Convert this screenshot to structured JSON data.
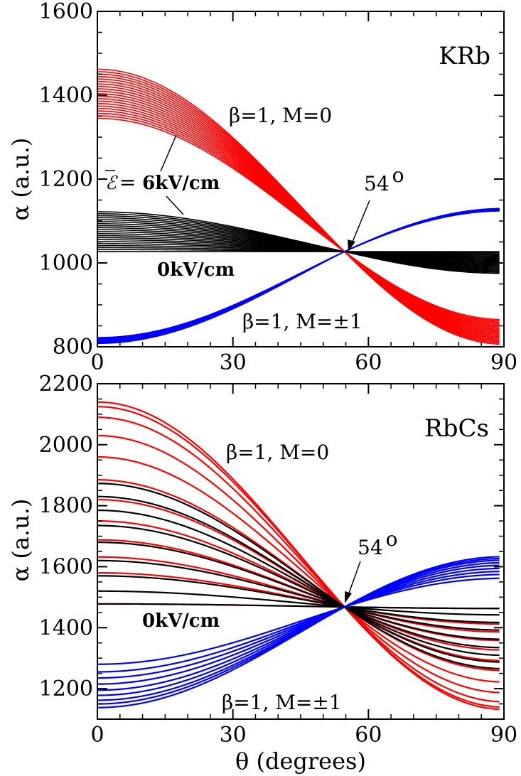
{
  "chart_data": [
    {
      "type": "line",
      "panel_label": "KRb",
      "xlabel": "",
      "ylabel": "α (a.u.)",
      "xlim": [
        0,
        90
      ],
      "ylim": [
        800,
        1600
      ],
      "xticks": [
        "0",
        "30",
        "60",
        "90"
      ],
      "yticks": [
        "800",
        "1000",
        "1200",
        "1400",
        "1600"
      ],
      "grid": false,
      "crossing_angle": 54.7,
      "annotations": {
        "m0": "β=1, M=0",
        "m1": "β=1, M=±1",
        "field_max_symbol": "ℰ",
        "field_max_eq": "= ",
        "field_max_value": "6kV/cm",
        "field_min": "0kV/cm",
        "angle": "54",
        "angle_sup": "o"
      },
      "series": [
        {
          "color": "#ff0000",
          "count": 21,
          "y0_range": [
            1345,
            1462
          ],
          "y90_range": [
            865,
            806
          ],
          "group": "M=0"
        },
        {
          "color": "#000000",
          "count": 21,
          "y0_range": [
            1027,
            1122
          ],
          "y90_range": [
            1027,
            975
          ],
          "group": "M=0 scaled"
        },
        {
          "color": "#0000ff",
          "count": 21,
          "y0_range": [
            822,
            808
          ],
          "y90_range": [
            1124,
            1130
          ],
          "group": "M=±1"
        }
      ]
    },
    {
      "type": "line",
      "panel_label": "RbCs",
      "xlabel": "θ (degrees)",
      "ylabel": "α (a.u.)",
      "xlim": [
        0,
        90
      ],
      "ylim": [
        1100,
        2200
      ],
      "xticks": [
        "0",
        "30",
        "60",
        "90"
      ],
      "yticks": [
        "1200",
        "1400",
        "1600",
        "1800",
        "2000",
        "2200"
      ],
      "grid": false,
      "crossing_angle": 54.7,
      "annotations": {
        "m0": "β=1, M=0",
        "m1": "β=1, M=±1",
        "field_min": "0kV/cm",
        "angle": "54",
        "angle_sup": "o"
      },
      "series": [
        {
          "color": "#ff0000",
          "group": "M=0",
          "y0": [
            1478,
            1580,
            1632,
            1688,
            1750,
            1820,
            1885,
            1960,
            2030,
            2090,
            2125,
            2140
          ]
        },
        {
          "color": "#000000",
          "group": "M=0 scaled",
          "y0": [
            1478,
            1520,
            1570,
            1620,
            1680,
            1735,
            1785,
            1830,
            1873
          ]
        },
        {
          "color": "#0000ff",
          "group": "M=±1",
          "y0": [
            1138,
            1150,
            1162,
            1178,
            1195,
            1215,
            1235,
            1255,
            1280
          ]
        }
      ]
    }
  ]
}
